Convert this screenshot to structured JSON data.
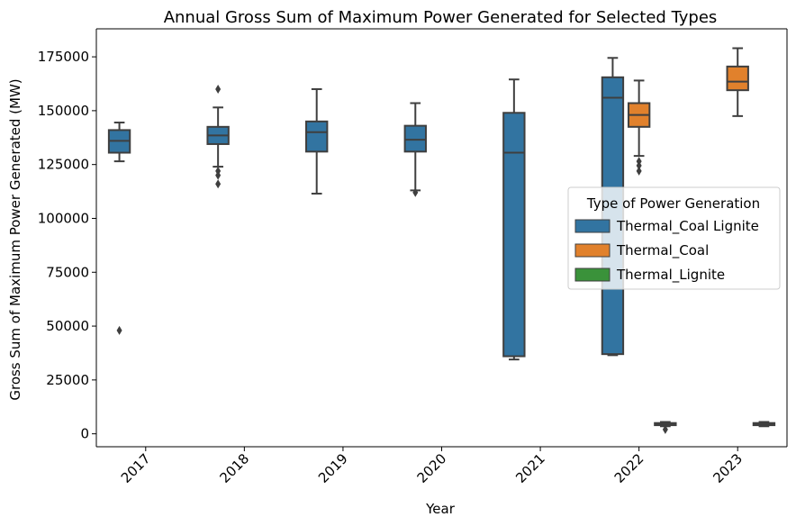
{
  "chart_data": {
    "type": "box",
    "title": "Annual Gross Sum of Maximum Power Generated for Selected Types",
    "xlabel": "Year",
    "ylabel": "Gross Sum of Maximum Power Generated (MW)",
    "categories": [
      "2017",
      "2018",
      "2019",
      "2020",
      "2021",
      "2022",
      "2023"
    ],
    "ylim": [
      -6000,
      188000
    ],
    "yticks": [
      0,
      25000,
      50000,
      75000,
      100000,
      125000,
      150000,
      175000
    ],
    "ytick_labels": [
      "0",
      "25000",
      "50000",
      "75000",
      "100000",
      "125000",
      "150000",
      "175000"
    ],
    "grid": false,
    "legend": {
      "title": "Type of Power Generation",
      "placement": "center-right"
    },
    "series": [
      {
        "name": "Thermal_Coal Lignite",
        "color": "#3274a1",
        "boxes": [
          {
            "category": "2017",
            "whislo": 126500,
            "q1": 130500,
            "med": 136000,
            "q3": 141000,
            "whishi": 144500,
            "fliers": [
              48000
            ]
          },
          {
            "category": "2018",
            "whislo": 124000,
            "q1": 134500,
            "med": 138500,
            "q3": 142500,
            "whishi": 151500,
            "fliers": [
              160000,
              122000,
              120000,
              116000
            ]
          },
          {
            "category": "2019",
            "whislo": 111500,
            "q1": 131000,
            "med": 140000,
            "q3": 145000,
            "whishi": 160000,
            "fliers": []
          },
          {
            "category": "2020",
            "whislo": 113000,
            "q1": 131000,
            "med": 136500,
            "q3": 143000,
            "whishi": 153500,
            "fliers": [
              112000
            ]
          },
          {
            "category": "2021",
            "whislo": 34500,
            "q1": 36000,
            "med": 130500,
            "q3": 149000,
            "whishi": 164500,
            "fliers": []
          },
          {
            "category": "2022",
            "whislo": 36500,
            "q1": 37000,
            "med": 156000,
            "q3": 165500,
            "whishi": 174500,
            "fliers": []
          }
        ]
      },
      {
        "name": "Thermal_Coal",
        "color": "#e1812c",
        "boxes": [
          {
            "category": "2022",
            "whislo": 129000,
            "q1": 142500,
            "med": 148000,
            "q3": 153500,
            "whishi": 164000,
            "fliers": [
              126500,
              124500,
              122000
            ]
          },
          {
            "category": "2023",
            "whislo": 147500,
            "q1": 159500,
            "med": 163500,
            "q3": 170500,
            "whishi": 179000,
            "fliers": []
          }
        ]
      },
      {
        "name": "Thermal_Lignite",
        "color": "#3a923a",
        "boxes": [
          {
            "category": "2022",
            "whislo": 3500,
            "q1": 4000,
            "med": 4500,
            "q3": 5000,
            "whishi": 5500,
            "fliers": [
              2000
            ]
          },
          {
            "category": "2023",
            "whislo": 3500,
            "q1": 4000,
            "med": 4500,
            "q3": 5000,
            "whishi": 5500,
            "fliers": []
          }
        ]
      }
    ]
  }
}
